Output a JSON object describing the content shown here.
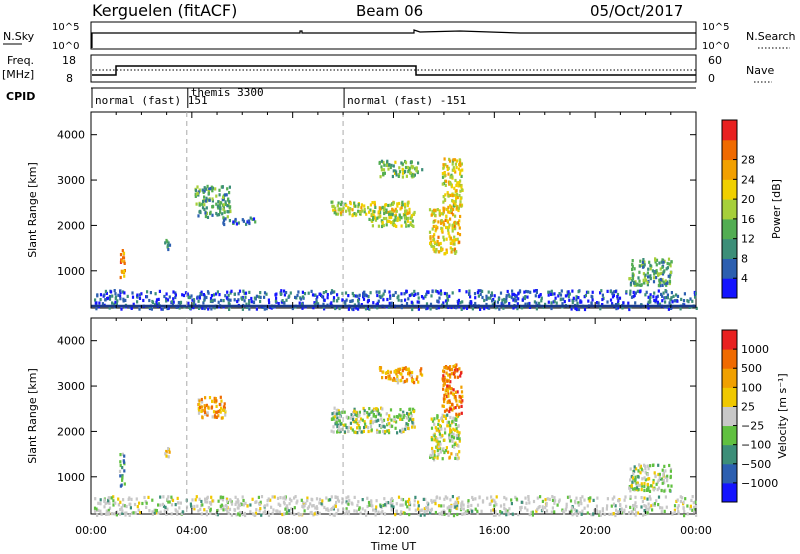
{
  "header": {
    "station": "Kerguelen (fitACF)",
    "beam": "Beam 06",
    "date": "05/Oct/2017"
  },
  "strips": {
    "nsky_label": "N.Sky",
    "nsky_ticks": [
      "10^5",
      "10^0"
    ],
    "nsearch_label": "N.Search",
    "nsearch_ticks": [
      "10^5",
      "10^0"
    ],
    "freq_label": "Freq.",
    "freq_unit": "[MHz]",
    "freq_ticks": [
      "18",
      "8"
    ],
    "nave_label": "Nave",
    "nave_ticks": [
      "60",
      "0"
    ],
    "cpid_label": "CPID"
  },
  "cpid_segments": [
    {
      "start": 0,
      "label": "normal (fast) 151"
    },
    {
      "start": 3.8,
      "label": "themis 3300"
    },
    {
      "start": 10.0,
      "label": "normal (fast) -151"
    }
  ],
  "chart_data": [
    {
      "type": "heatmap",
      "name": "power",
      "ylabel": "Slant Range [km]",
      "xlim": [
        0,
        24
      ],
      "ylim": [
        180,
        4500
      ],
      "yticks": [
        1000,
        2000,
        3000,
        4000
      ],
      "colorbar": {
        "label": "Power [dB]",
        "ticks": [
          "4",
          "8",
          "12",
          "16",
          "20",
          "24",
          "28"
        ],
        "colors": [
          "#1414ff",
          "#2c5fb0",
          "#3c8e78",
          "#52ad52",
          "#a6cf3a",
          "#f0d000",
          "#f2a000",
          "#ef6a00",
          "#e82020"
        ]
      },
      "regions": [
        {
          "t0": 1.1,
          "t1": 1.3,
          "r0": 800,
          "r1": 1550,
          "level": 0.78
        },
        {
          "t0": 2.9,
          "t1": 3.1,
          "r0": 1400,
          "r1": 1750,
          "level": 0.3
        },
        {
          "t0": 4.1,
          "t1": 5.5,
          "r0": 2200,
          "r1": 2900,
          "level": 0.35
        },
        {
          "t0": 5.2,
          "t1": 6.5,
          "r0": 2050,
          "r1": 2200,
          "level": 0.2
        },
        {
          "t0": 9.5,
          "t1": 12.8,
          "r0": 2250,
          "r1": 2550,
          "level": 0.55
        },
        {
          "t0": 11.0,
          "t1": 12.8,
          "r0": 2000,
          "r1": 2350,
          "level": 0.5
        },
        {
          "t0": 13.4,
          "t1": 14.6,
          "r0": 1400,
          "r1": 2400,
          "level": 0.62
        },
        {
          "t0": 13.9,
          "t1": 14.7,
          "r0": 2400,
          "r1": 3500,
          "level": 0.6
        },
        {
          "t0": 11.4,
          "t1": 13.1,
          "r0": 3100,
          "r1": 3450,
          "level": 0.4
        },
        {
          "t0": 21.3,
          "t1": 23.0,
          "r0": 700,
          "r1": 1300,
          "level": 0.35
        },
        {
          "t0": 0.1,
          "t1": 24.0,
          "r0": 180,
          "r1": 600,
          "level": 0.15
        }
      ]
    },
    {
      "type": "heatmap",
      "name": "velocity",
      "ylabel": "Slant Range [km]",
      "xlabel": "Time UT",
      "xlim": [
        0,
        24
      ],
      "ylim": [
        180,
        4500
      ],
      "yticks": [
        1000,
        2000,
        3000,
        4000
      ],
      "xticks": [
        "00:00",
        "04:00",
        "08:00",
        "12:00",
        "16:00",
        "20:00",
        "00:00"
      ],
      "colorbar": {
        "label": "Velocity [m s⁻¹]",
        "ticks": [
          "1000",
          "500",
          "100",
          "25",
          "−25",
          "−100",
          "−500",
          "−1000"
        ],
        "colors": [
          "#1414ff",
          "#2c5fb0",
          "#3c8e78",
          "#60c040",
          "#c8c8c8",
          "#f0c800",
          "#f0a000",
          "#ef6a00",
          "#e82020"
        ]
      },
      "regions": [
        {
          "t0": 1.1,
          "t1": 1.3,
          "r0": 800,
          "r1": 1550,
          "level": 0.3
        },
        {
          "t0": 2.9,
          "t1": 3.1,
          "r0": 1400,
          "r1": 1750,
          "level": 0.55
        },
        {
          "t0": 4.2,
          "t1": 5.3,
          "r0": 2300,
          "r1": 2800,
          "level": 0.7
        },
        {
          "t0": 9.5,
          "t1": 12.8,
          "r0": 2000,
          "r1": 2550,
          "level": 0.45
        },
        {
          "t0": 13.4,
          "t1": 14.6,
          "r0": 1400,
          "r1": 2400,
          "level": 0.5
        },
        {
          "t0": 13.9,
          "t1": 14.7,
          "r0": 2400,
          "r1": 3500,
          "level": 0.8
        },
        {
          "t0": 11.4,
          "t1": 13.1,
          "r0": 3100,
          "r1": 3450,
          "level": 0.7
        },
        {
          "t0": 21.3,
          "t1": 23.0,
          "r0": 700,
          "r1": 1300,
          "level": 0.45
        },
        {
          "t0": 0.1,
          "t1": 24.0,
          "r0": 180,
          "r1": 600,
          "level": 0.45
        }
      ]
    }
  ]
}
